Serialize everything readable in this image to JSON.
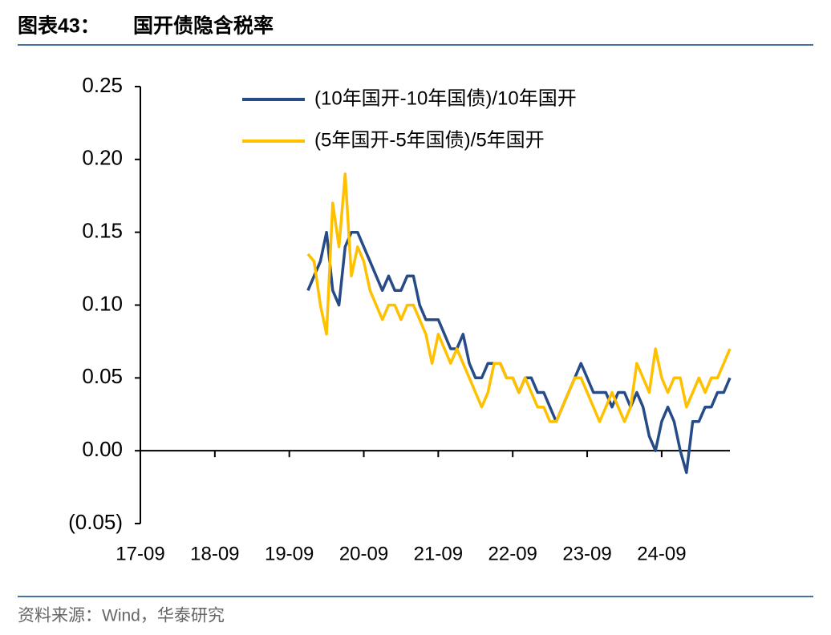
{
  "chart_data": {
    "type": "line",
    "figure_label": "图表43：",
    "title": "国开债隐含税率",
    "source": "资料来源：Wind，华泰研究",
    "x": [
      "19-12",
      "20-01",
      "20-02",
      "20-03",
      "20-04",
      "20-05",
      "20-06",
      "20-07",
      "20-08",
      "20-09",
      "20-10",
      "20-11",
      "20-12",
      "21-01",
      "21-02",
      "21-03",
      "21-04",
      "21-05",
      "21-06",
      "21-07",
      "21-08",
      "21-09",
      "21-10",
      "21-11",
      "21-12",
      "22-01",
      "22-02",
      "22-03",
      "22-04",
      "22-05",
      "22-06",
      "22-07",
      "22-08",
      "22-09",
      "22-10",
      "22-11",
      "22-12",
      "23-01",
      "23-02",
      "23-03",
      "23-04",
      "23-05",
      "23-06",
      "23-07",
      "23-08",
      "23-09",
      "23-10",
      "23-11",
      "23-12",
      "24-01",
      "24-02",
      "24-03",
      "24-04",
      "24-05",
      "24-06",
      "24-07",
      "24-08",
      "24-09",
      "24-10",
      "24-11",
      "24-12",
      "25-01",
      "25-02",
      "25-03",
      "25-04",
      "25-05",
      "25-06",
      "25-07",
      "25-08"
    ],
    "series": [
      {
        "name": "(10年国开-10年国债)/10年国开",
        "color": "#264b86",
        "values": [
          0.11,
          0.12,
          0.13,
          0.15,
          0.11,
          0.1,
          0.14,
          0.15,
          0.15,
          0.14,
          0.13,
          0.12,
          0.11,
          0.12,
          0.11,
          0.11,
          0.12,
          0.12,
          0.1,
          0.09,
          0.09,
          0.09,
          0.08,
          0.07,
          0.07,
          0.08,
          0.06,
          0.05,
          0.05,
          0.06,
          0.06,
          0.06,
          0.05,
          0.05,
          0.04,
          0.05,
          0.05,
          0.04,
          0.04,
          0.03,
          0.02,
          0.03,
          0.04,
          0.05,
          0.06,
          0.05,
          0.04,
          0.04,
          0.04,
          0.03,
          0.04,
          0.04,
          0.03,
          0.04,
          0.03,
          0.01,
          0.0,
          0.02,
          0.03,
          0.02,
          0.0,
          -0.015,
          0.02,
          0.02,
          0.03,
          0.03,
          0.04,
          0.04,
          0.05
        ]
      },
      {
        "name": "(5年国开-5年国债)/5年国开",
        "color": "#ffc000",
        "values": [
          0.135,
          0.13,
          0.1,
          0.08,
          0.17,
          0.14,
          0.19,
          0.12,
          0.14,
          0.13,
          0.11,
          0.1,
          0.09,
          0.1,
          0.1,
          0.09,
          0.1,
          0.1,
          0.09,
          0.08,
          0.06,
          0.08,
          0.07,
          0.06,
          0.07,
          0.06,
          0.05,
          0.04,
          0.03,
          0.04,
          0.06,
          0.06,
          0.05,
          0.05,
          0.04,
          0.05,
          0.04,
          0.03,
          0.03,
          0.02,
          0.02,
          0.03,
          0.04,
          0.05,
          0.05,
          0.04,
          0.03,
          0.02,
          0.03,
          0.04,
          0.03,
          0.02,
          0.03,
          0.06,
          0.05,
          0.04,
          0.07,
          0.05,
          0.04,
          0.05,
          0.05,
          0.03,
          0.04,
          0.05,
          0.04,
          0.05,
          0.05,
          0.06,
          0.07
        ]
      }
    ],
    "xlim": [
      "17-09",
      "25-08"
    ],
    "xticks": [
      "17-09",
      "18-09",
      "19-09",
      "20-09",
      "21-09",
      "22-09",
      "23-09",
      "24-09"
    ],
    "ylim": [
      -0.05,
      0.25
    ],
    "yticks": [
      {
        "value": -0.05,
        "label": "(0.05)"
      },
      {
        "value": 0,
        "label": "0.00"
      },
      0.05,
      {
        "value": 0.1,
        "label": "0.10"
      },
      0.15,
      {
        "value": 0.2,
        "label": "0.20"
      },
      0.25
    ],
    "legend": "top"
  }
}
